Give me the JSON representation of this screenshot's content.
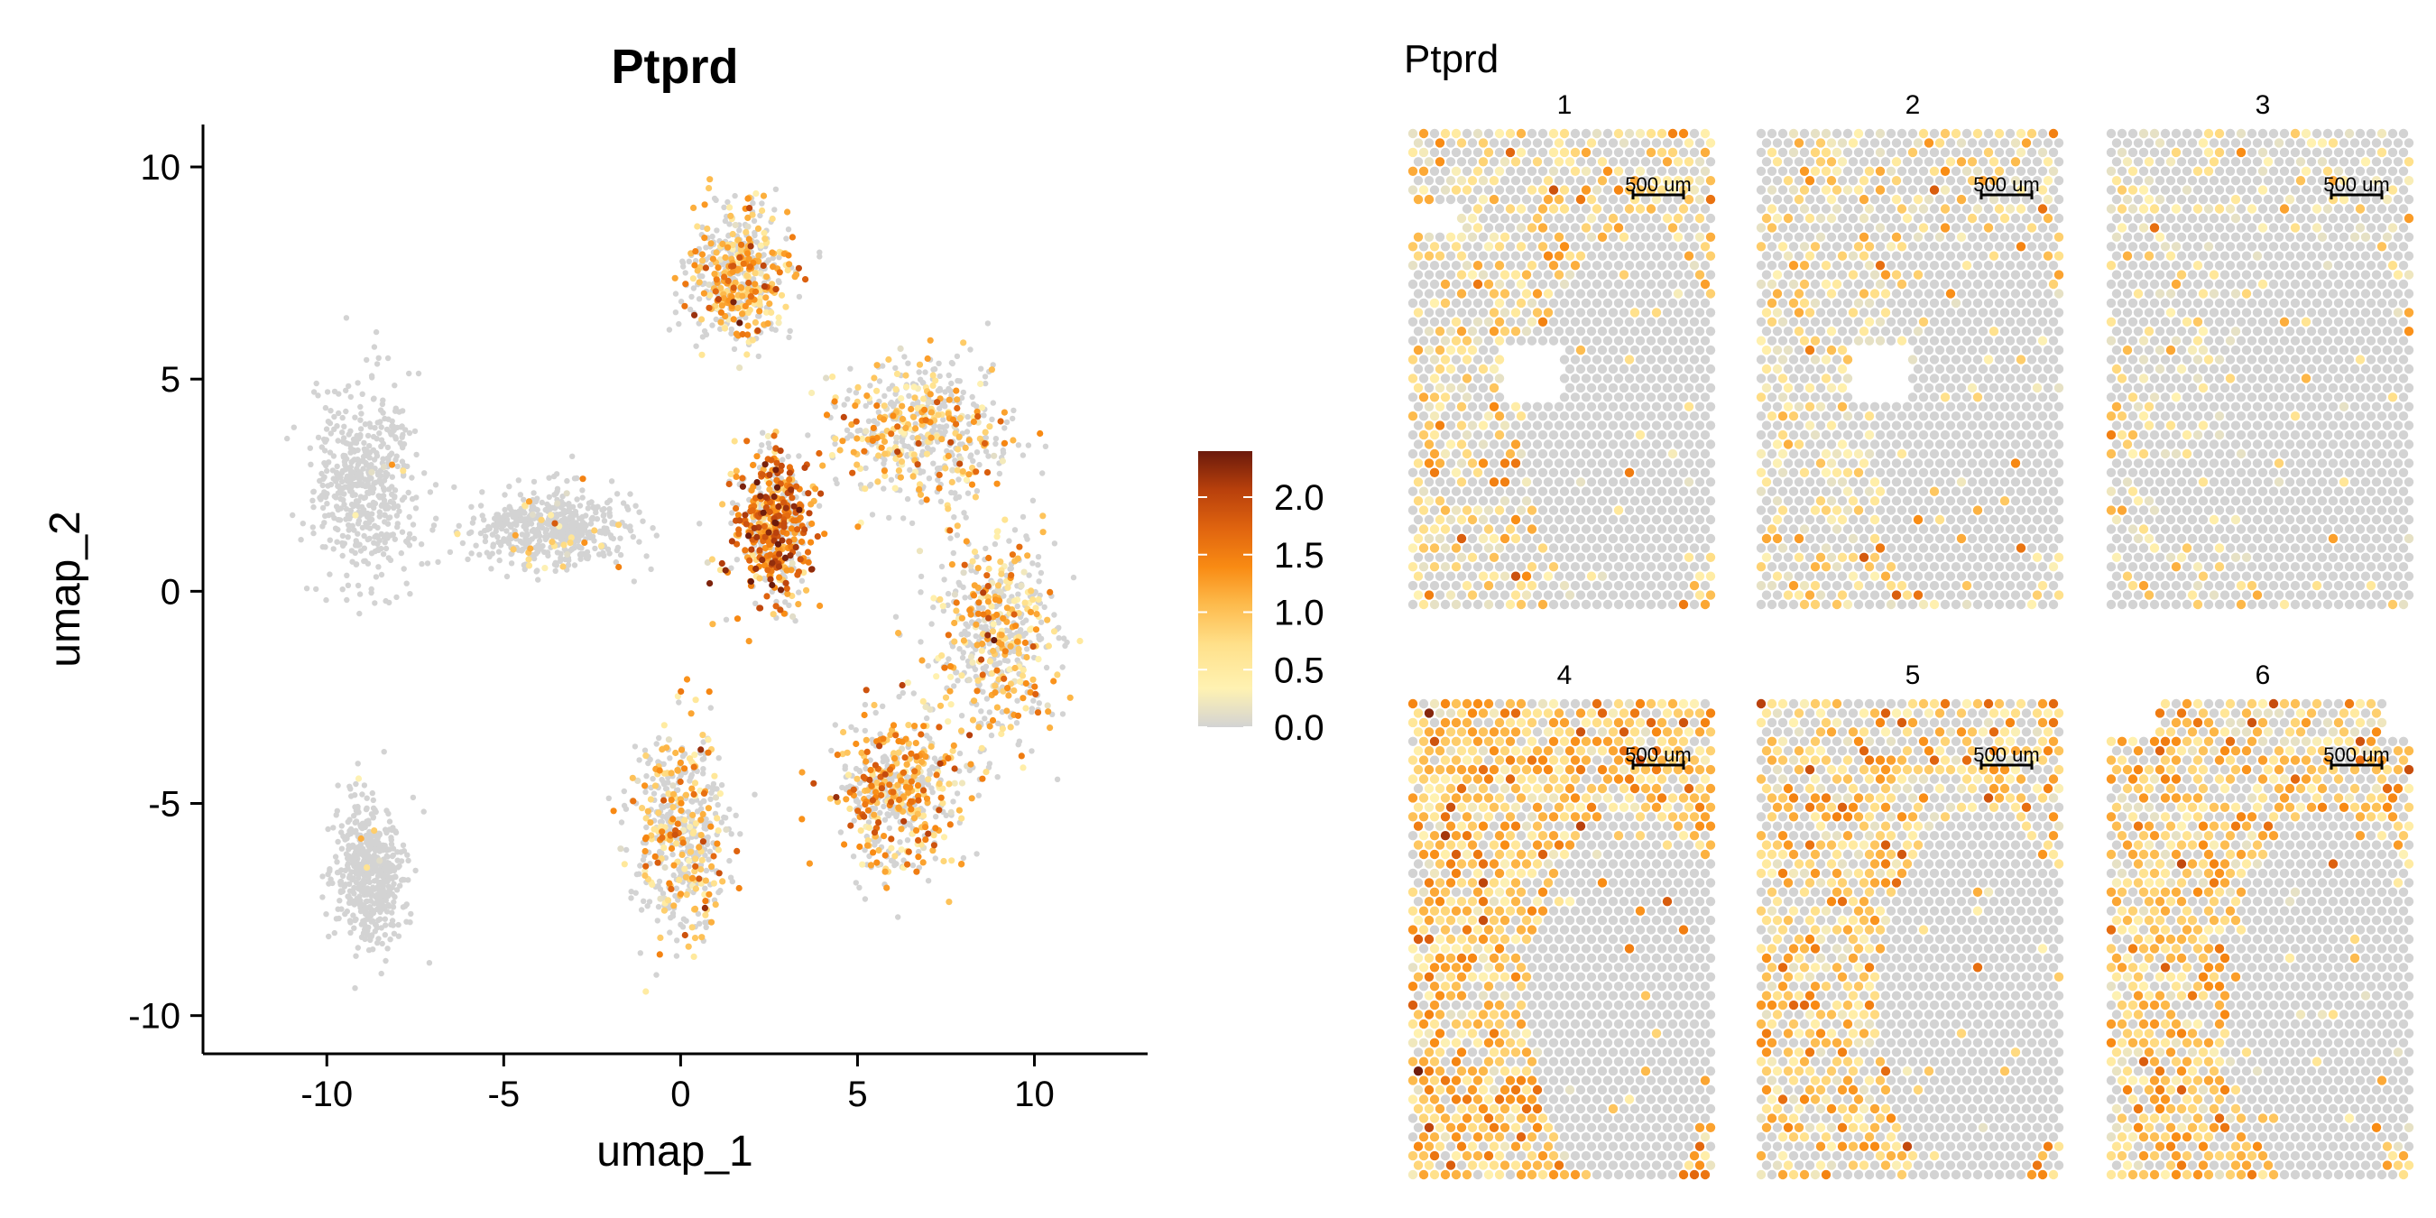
{
  "chart_data": [
    {
      "type": "scatter",
      "title": "Ptprd",
      "xlabel": "umap_1",
      "ylabel": "umap_2",
      "xlim": [
        -13.5,
        13.2
      ],
      "ylim": [
        -10.9,
        11.0
      ],
      "x_ticks": [
        -10,
        -5,
        0,
        5,
        10
      ],
      "x_tick_labels": [
        "-10",
        "-5",
        "0",
        "5",
        "10"
      ],
      "y_ticks": [
        10,
        5,
        0,
        -5,
        -10
      ],
      "y_tick_labels": [
        "10",
        "5",
        "0",
        "-5",
        "-10"
      ],
      "grid": false,
      "colorbar": {
        "min": 0.0,
        "max": 2.4,
        "ticks": [
          2.0,
          1.5,
          1.0,
          0.5,
          0.0
        ],
        "tick_labels": [
          "2.0",
          "1.5",
          "1.0",
          "0.5",
          "0.0"
        ],
        "colors": [
          "#d3d3d3",
          "#fff2b2",
          "#ffe08a",
          "#fdb94a",
          "#f98b13",
          "#e0640f",
          "#b8400c",
          "#6b1a0c"
        ]
      },
      "clusters": [
        {
          "name": "left-blob",
          "center": [
            -8.9,
            2.6
          ],
          "spread": [
            1.3,
            2.2
          ],
          "expr_rate": 0.02,
          "mean_expr": 0.4
        },
        {
          "name": "bottom-left-blob",
          "center": [
            -8.8,
            -6.6
          ],
          "spread": [
            0.9,
            1.6
          ],
          "expr_rate": 0.02,
          "mean_expr": 0.4
        },
        {
          "name": "bridge",
          "center": [
            -3.6,
            1.5
          ],
          "spread": [
            2.0,
            0.8
          ],
          "expr_rate": 0.08,
          "mean_expr": 0.6
        },
        {
          "name": "top-arm",
          "center": [
            1.6,
            7.5
          ],
          "spread": [
            1.3,
            1.4
          ],
          "expr_rate": 0.5,
          "mean_expr": 1.0
        },
        {
          "name": "center-core",
          "center": [
            2.6,
            1.5
          ],
          "spread": [
            1.0,
            1.6
          ],
          "expr_rate": 0.7,
          "mean_expr": 1.5
        },
        {
          "name": "right-upper",
          "center": [
            6.8,
            3.8
          ],
          "spread": [
            2.3,
            1.5
          ],
          "expr_rate": 0.4,
          "mean_expr": 0.9
        },
        {
          "name": "right-loop",
          "center": [
            8.9,
            -1.0
          ],
          "spread": [
            1.6,
            2.3
          ],
          "expr_rate": 0.45,
          "mean_expr": 0.9
        },
        {
          "name": "lower-right",
          "center": [
            6.1,
            -4.8
          ],
          "spread": [
            1.6,
            1.6
          ],
          "expr_rate": 0.55,
          "mean_expr": 1.1
        },
        {
          "name": "lower-stem",
          "center": [
            0.0,
            -5.6
          ],
          "spread": [
            1.2,
            2.1
          ],
          "expr_rate": 0.4,
          "mean_expr": 0.9
        }
      ]
    },
    {
      "type": "heatmap",
      "title": "Ptprd",
      "panels": [
        {
          "label": "1",
          "scale_bar": "500 um",
          "mean_expr": 0.6,
          "expr_rate": 0.45
        },
        {
          "label": "2",
          "scale_bar": "500 um",
          "mean_expr": 0.55,
          "expr_rate": 0.4
        },
        {
          "label": "3",
          "scale_bar": "500 um",
          "mean_expr": 0.4,
          "expr_rate": 0.25
        },
        {
          "label": "4",
          "scale_bar": "500 um",
          "mean_expr": 0.9,
          "expr_rate": 0.8
        },
        {
          "label": "5",
          "scale_bar": "500 um",
          "mean_expr": 0.8,
          "expr_rate": 0.65
        },
        {
          "label": "6",
          "scale_bar": "500 um",
          "mean_expr": 0.8,
          "expr_rate": 0.7
        }
      ]
    }
  ]
}
